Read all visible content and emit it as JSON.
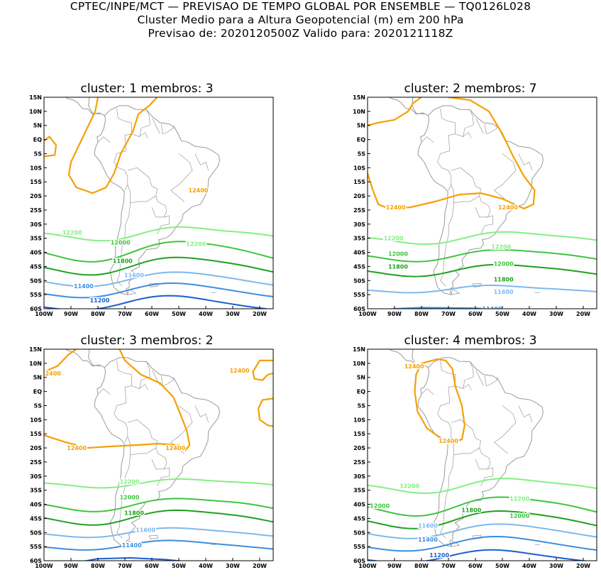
{
  "header": {
    "line1": "CPTEC/INPE/MCT — PREVISAO DE TEMPO GLOBAL POR ENSEMBLE — TQ0126L028",
    "line2": "Cluster Medio para a Altura Geopotencial (m) em 200 hPa",
    "line3": "Previsao de: 2020120500Z    Valido para: 2020121118Z"
  },
  "axes": {
    "lat_labels": [
      "15N",
      "10N",
      "5N",
      "EQ",
      "5S",
      "10S",
      "15S",
      "20S",
      "25S",
      "30S",
      "35S",
      "40S",
      "45S",
      "50S",
      "55S",
      "60S"
    ],
    "lon_labels": [
      "100W",
      "90W",
      "80W",
      "70W",
      "60W",
      "50W",
      "40W",
      "30W",
      "20W"
    ]
  },
  "colors": {
    "c12400": "#f5a000",
    "c12200": "#84ee84",
    "c12000": "#3fc43f",
    "c11800": "#1fa01f",
    "c11600": "#7fb8ec",
    "c11400": "#3c8ee0",
    "c11200": "#1a5ed0",
    "land": "#9a9a9a"
  },
  "panels": [
    {
      "title": "cluster: 1   membros: 3",
      "labels": [
        {
          "text": "12400",
          "x": 63,
          "lat": -18,
          "c": "c12400"
        },
        {
          "text": "12200",
          "x": 8,
          "lat": -33,
          "c": "c12200"
        },
        {
          "text": "12200",
          "x": 62,
          "lat": -37,
          "c": "c12200"
        },
        {
          "text": "12000",
          "x": 29,
          "lat": -36.5,
          "c": "c12000"
        },
        {
          "text": "11800",
          "x": 30,
          "lat": -43,
          "c": "c11800"
        },
        {
          "text": "11600",
          "x": 35,
          "lat": -48,
          "c": "c11600"
        },
        {
          "text": "11400",
          "x": 13,
          "lat": -52,
          "c": "c11400"
        },
        {
          "text": "11200",
          "x": 20,
          "lat": -57,
          "c": "c11200"
        }
      ]
    },
    {
      "title": "cluster: 2   membros: 7",
      "labels": [
        {
          "text": "12400",
          "x": 8,
          "lat": -24,
          "c": "c12400"
        },
        {
          "text": "12400",
          "x": 57,
          "lat": -24,
          "c": "c12400"
        },
        {
          "text": "12200",
          "x": 7,
          "lat": -35,
          "c": "c12200"
        },
        {
          "text": "12200",
          "x": 54,
          "lat": -38,
          "c": "c12200"
        },
        {
          "text": "12000",
          "x": 9,
          "lat": -40.5,
          "c": "c12000"
        },
        {
          "text": "12000",
          "x": 55,
          "lat": -44,
          "c": "c12000"
        },
        {
          "text": "11800",
          "x": 9,
          "lat": -45,
          "c": "c11800"
        },
        {
          "text": "11800",
          "x": 55,
          "lat": -49.5,
          "c": "c11800"
        },
        {
          "text": "11600",
          "x": 55,
          "lat": -54,
          "c": "c11600"
        },
        {
          "text": "11400",
          "x": 50,
          "lat": -60,
          "c": "c11400"
        }
      ]
    },
    {
      "title": "cluster: 3   membros: 2",
      "labels": [
        {
          "text": "2400",
          "x": 0.5,
          "lat": 6.5,
          "c": "c12400"
        },
        {
          "text": "12400",
          "x": 81,
          "lat": 7.5,
          "c": "c12400"
        },
        {
          "text": "12400",
          "x": 10,
          "lat": -20,
          "c": "c12400"
        },
        {
          "text": "12400",
          "x": 53,
          "lat": -20,
          "c": "c12400"
        },
        {
          "text": "12200",
          "x": 33,
          "lat": -32,
          "c": "c12200"
        },
        {
          "text": "12000",
          "x": 33,
          "lat": -37.5,
          "c": "c12000"
        },
        {
          "text": "11800",
          "x": 35,
          "lat": -43,
          "c": "c11800"
        },
        {
          "text": "11600",
          "x": 40,
          "lat": -49,
          "c": "c11600"
        },
        {
          "text": "11400",
          "x": 34,
          "lat": -54.5,
          "c": "c11400"
        }
      ]
    },
    {
      "title": "cluster: 4   membros: 3",
      "labels": [
        {
          "text": "12400",
          "x": 16,
          "lat": 9,
          "c": "c12400"
        },
        {
          "text": "12400",
          "x": 31,
          "lat": -17.5,
          "c": "c12400"
        },
        {
          "text": "12200",
          "x": 14,
          "lat": -33.5,
          "c": "c12200"
        },
        {
          "text": "12200",
          "x": 62,
          "lat": -38,
          "c": "c12200"
        },
        {
          "text": "12000",
          "x": 1,
          "lat": -40.5,
          "c": "c12000"
        },
        {
          "text": "12000",
          "x": 62,
          "lat": -44,
          "c": "c12000"
        },
        {
          "text": "11800",
          "x": 41,
          "lat": -42,
          "c": "c11800"
        },
        {
          "text": "11600",
          "x": 22,
          "lat": -47.5,
          "c": "c11600"
        },
        {
          "text": "11400",
          "x": 22,
          "lat": -52.5,
          "c": "c11400"
        },
        {
          "text": "11200",
          "x": 27,
          "lat": -58,
          "c": "c11200"
        }
      ]
    }
  ]
}
